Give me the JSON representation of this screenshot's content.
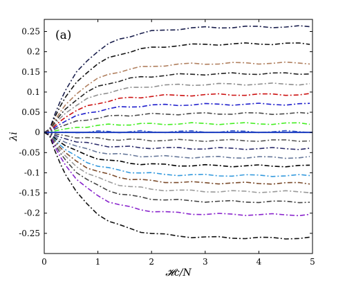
{
  "chart_data": {
    "type": "line",
    "title": "",
    "panel_label": "(a)",
    "xlabel": "𝓗c/N",
    "ylabel": "λi",
    "xlim": [
      0,
      5
    ],
    "ylim": [
      -0.3,
      0.28
    ],
    "x_ticks": [
      0,
      1,
      2,
      3,
      4,
      5
    ],
    "y_ticks": [
      -0.25,
      -0.2,
      -0.15,
      -0.1,
      -0.05,
      0,
      0.05,
      0.1,
      0.15,
      0.2,
      0.25
    ],
    "x_tick_labels": [
      "0",
      "1",
      "2",
      "3",
      "4",
      "5"
    ],
    "y_tick_labels": [
      "-0.25",
      "-0.2",
      "-0.15",
      "-0.1",
      "-0.05",
      "0",
      "0.05",
      "0.1",
      "0.15",
      "0.2",
      "0.25"
    ],
    "grid": false,
    "legend": "none",
    "x": [
      0,
      0.1,
      0.2,
      0.3,
      0.4,
      0.6,
      0.8,
      1.0,
      1.2,
      1.4,
      1.6,
      1.8,
      2.0,
      2.25,
      2.5,
      2.75,
      3.0,
      3.25,
      3.5,
      3.75,
      4.0,
      4.25,
      4.5,
      4.75,
      4.95
    ],
    "series": [
      {
        "color": "#1a1f4d",
        "plateau": 0.262
      },
      {
        "color": "#111111",
        "plateau": 0.22
      },
      {
        "color": "#b07f5e",
        "plateau": 0.172
      },
      {
        "color": "#222222",
        "plateau": 0.146
      },
      {
        "color": "#8e8e8e",
        "plateau": 0.12
      },
      {
        "color": "#cc1111",
        "plateau": 0.094
      },
      {
        "color": "#1f1fcc",
        "plateau": 0.07
      },
      {
        "color": "#4a4a4a",
        "plateau": 0.047
      },
      {
        "color": "#44ee22",
        "plateau": 0.022
      },
      {
        "color": "#3355cc",
        "plateau": 0.002
      },
      {
        "color": "#555555",
        "plateau": -0.02
      },
      {
        "color": "#2a2a6a",
        "plateau": -0.04
      },
      {
        "color": "#667799",
        "plateau": -0.062
      },
      {
        "color": "#000000",
        "plateau": -0.083
      },
      {
        "color": "#3399dd",
        "plateau": -0.107
      },
      {
        "color": "#7a4a2a",
        "plateau": -0.126
      },
      {
        "color": "#999999",
        "plateau": -0.147
      },
      {
        "color": "#444444",
        "plateau": -0.172
      },
      {
        "color": "#8822cc",
        "plateau": -0.204
      },
      {
        "color": "#111111",
        "plateau": -0.262
      }
    ]
  }
}
